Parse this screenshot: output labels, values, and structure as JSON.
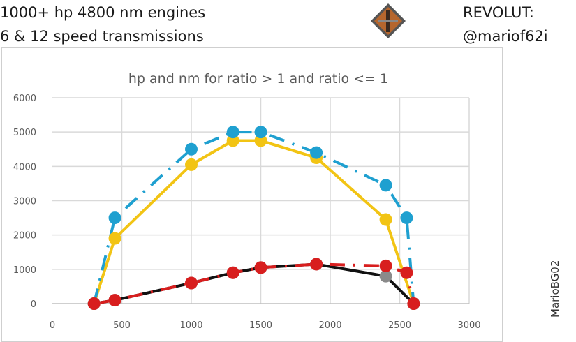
{
  "header": {
    "line1": "1000+ hp 4800 nm engines",
    "line2": "6 & 12 speed transmissions",
    "revolut_label": "REVOLUT:",
    "revolut_handle": "@mariof62i",
    "logo": "diamond-emblem-logo",
    "watermark": "MarioBG02"
  },
  "chart_data": {
    "type": "line",
    "title": "hp and nm for ratio > 1 and ratio <= 1",
    "xlim": [
      0,
      3000
    ],
    "ylim": [
      0,
      6000
    ],
    "xticks": [
      0,
      500,
      1000,
      1500,
      2000,
      2500,
      3000
    ],
    "yticks": [
      0,
      1000,
      2000,
      3000,
      4000,
      5000,
      6000
    ],
    "grid": true,
    "legend": "none",
    "series": [
      {
        "color": "#f2c414",
        "style": "solid",
        "marker_color": "#f2c414",
        "x": [
          300,
          450,
          1000,
          1300,
          1500,
          1900,
          2400,
          2600
        ],
        "y": [
          0,
          1900,
          4050,
          4750,
          4750,
          4250,
          2450,
          0
        ]
      },
      {
        "color": "#1fa0d0",
        "style": "dashdot",
        "marker_color": "#1fa0d0",
        "x": [
          300,
          450,
          1000,
          1300,
          1500,
          1900,
          2400,
          2550,
          2600
        ],
        "y": [
          0,
          2500,
          4500,
          5000,
          5000,
          4400,
          3450,
          2500,
          0
        ]
      },
      {
        "color": "#111111",
        "style": "solid",
        "marker_color": "#8a8a8a",
        "x": [
          300,
          450,
          1000,
          1300,
          1500,
          1900,
          2400,
          2600
        ],
        "y": [
          0,
          100,
          600,
          900,
          1050,
          1150,
          800,
          0
        ]
      },
      {
        "color": "#d81e1e",
        "style": "dashdot",
        "marker_color": "#d81e1e",
        "x": [
          300,
          450,
          1000,
          1300,
          1500,
          1900,
          2400,
          2550,
          2600
        ],
        "y": [
          0,
          100,
          600,
          900,
          1050,
          1150,
          1100,
          900,
          0
        ]
      }
    ]
  }
}
